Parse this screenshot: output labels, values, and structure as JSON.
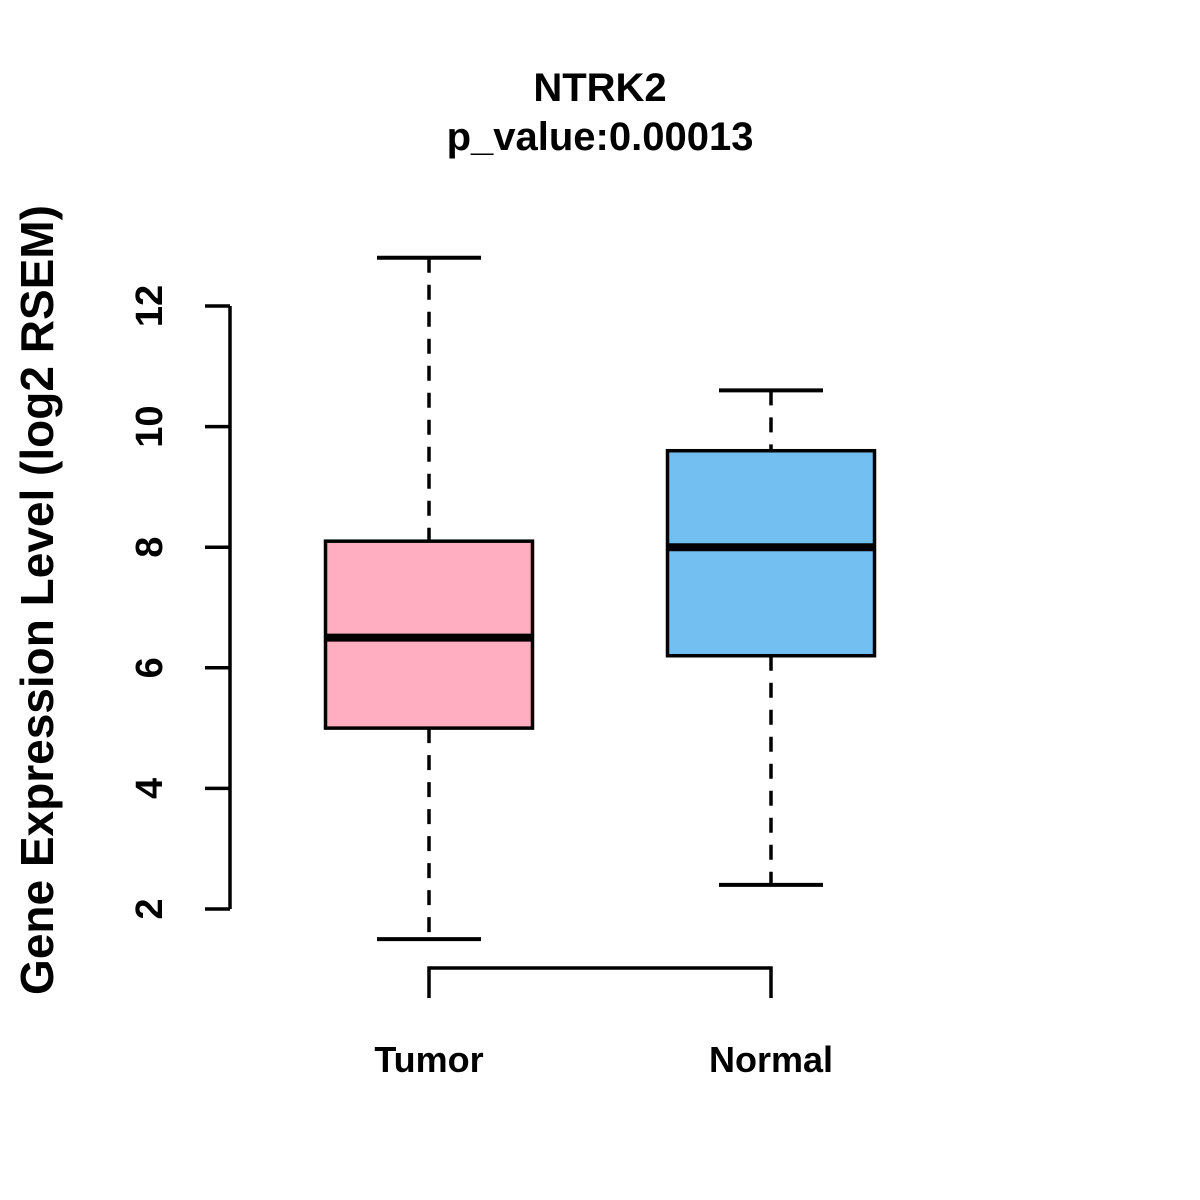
{
  "title": "NTRK2",
  "subtitle": "p_value:0.00013",
  "p_value": "0.00013",
  "chart_data": {
    "type": "boxplot",
    "title": "NTRK2",
    "subtitle": "p_value:0.00013",
    "ylabel": "Gene Expression Level (log2 RSEM)",
    "xlabel": "",
    "categories": [
      "Tumor",
      "Normal"
    ],
    "yticks": [
      2,
      4,
      6,
      8,
      10,
      12
    ],
    "ylim": [
      2,
      12
    ],
    "grid": false,
    "legend": "none",
    "colors": {
      "tumor_fill": "#ffaec1",
      "normal_fill": "#74bff2",
      "stroke": "#000000",
      "background": "#ffffff"
    },
    "series": [
      {
        "name": "Tumor",
        "fill_color": "#ffaec1",
        "whisker_low": 1.5,
        "q1": 5.0,
        "median": 6.5,
        "q3": 8.1,
        "whisker_high": 12.8
      },
      {
        "name": "Normal",
        "fill_color": "#74bff2",
        "whisker_low": 2.4,
        "q1": 6.2,
        "median": 8.0,
        "q3": 9.6,
        "whisker_high": 10.6
      }
    ]
  }
}
